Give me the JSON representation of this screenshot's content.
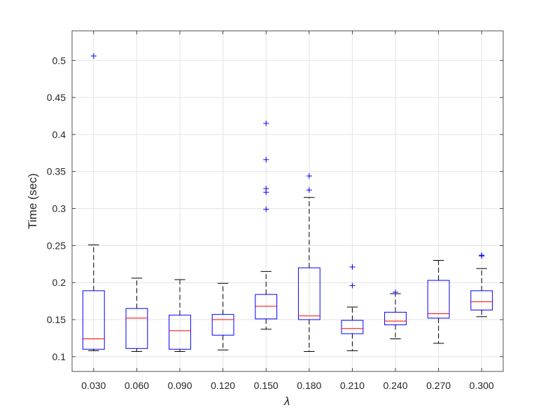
{
  "chart_data": {
    "type": "box",
    "xlabel": "λ",
    "ylabel": "Time (sec)",
    "categories": [
      "0.030",
      "0.060",
      "0.090",
      "0.120",
      "0.150",
      "0.180",
      "0.210",
      "0.240",
      "0.270",
      "0.300"
    ],
    "ylim": [
      0.08,
      0.54
    ],
    "yticks": [
      0.1,
      0.15,
      0.2,
      0.25,
      0.3,
      0.35,
      0.4,
      0.45,
      0.5
    ],
    "ytick_labels": [
      "0.1",
      "0.15",
      "0.2",
      "0.25",
      "0.3",
      "0.35",
      "0.4",
      "0.45",
      "0.5"
    ],
    "grid": true,
    "boxes": [
      {
        "whisker_low": 0.108,
        "q1": 0.11,
        "median": 0.124,
        "q3": 0.189,
        "whisker_high": 0.251,
        "outliers": [
          0.506
        ]
      },
      {
        "whisker_low": 0.107,
        "q1": 0.111,
        "median": 0.152,
        "q3": 0.165,
        "whisker_high": 0.206,
        "outliers": []
      },
      {
        "whisker_low": 0.107,
        "q1": 0.11,
        "median": 0.135,
        "q3": 0.156,
        "whisker_high": 0.204,
        "outliers": []
      },
      {
        "whisker_low": 0.109,
        "q1": 0.129,
        "median": 0.15,
        "q3": 0.157,
        "whisker_high": 0.199,
        "outliers": []
      },
      {
        "whisker_low": 0.137,
        "q1": 0.151,
        "median": 0.168,
        "q3": 0.184,
        "whisker_high": 0.215,
        "outliers": [
          0.299,
          0.322,
          0.327,
          0.366,
          0.415
        ]
      },
      {
        "whisker_low": 0.107,
        "q1": 0.15,
        "median": 0.155,
        "q3": 0.22,
        "whisker_high": 0.315,
        "outliers": [
          0.325,
          0.344
        ]
      },
      {
        "whisker_low": 0.108,
        "q1": 0.131,
        "median": 0.138,
        "q3": 0.149,
        "whisker_high": 0.167,
        "outliers": [
          0.196,
          0.221
        ]
      },
      {
        "whisker_low": 0.124,
        "q1": 0.143,
        "median": 0.148,
        "q3": 0.16,
        "whisker_high": 0.185,
        "outliers": [
          0.187
        ]
      },
      {
        "whisker_low": 0.118,
        "q1": 0.152,
        "median": 0.158,
        "q3": 0.203,
        "whisker_high": 0.23,
        "outliers": []
      },
      {
        "whisker_low": 0.154,
        "q1": 0.163,
        "median": 0.174,
        "q3": 0.189,
        "whisker_high": 0.219,
        "outliers": [
          0.236,
          0.237
        ]
      }
    ],
    "colors": {
      "box": "#0000ff",
      "median": "#ff0000",
      "whisker": "#000000",
      "outlier": "#0000ff",
      "grid": "#e3e3e3",
      "axis": "#262626"
    }
  }
}
